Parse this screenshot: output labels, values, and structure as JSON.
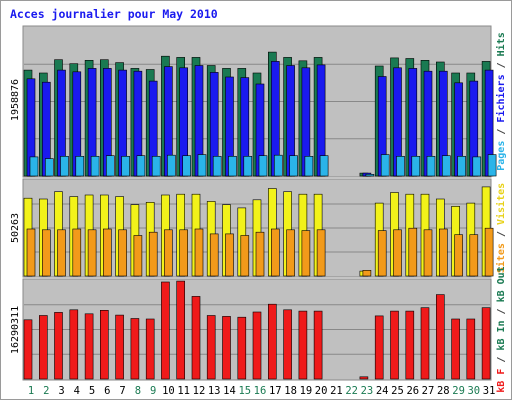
{
  "chart_data": {
    "type": "bar",
    "title": "Acces journalier pour May 2010",
    "days": [
      "1",
      "2",
      "3",
      "4",
      "5",
      "6",
      "7",
      "8",
      "9",
      "10",
      "11",
      "12",
      "13",
      "14",
      "15",
      "16",
      "17",
      "18",
      "19",
      "20",
      "21",
      "22",
      "23",
      "24",
      "25",
      "26",
      "27",
      "28",
      "29",
      "30",
      "31"
    ],
    "weekend_days": [
      "1",
      "2",
      "8",
      "9",
      "15",
      "16",
      "22",
      "23",
      "29",
      "30"
    ],
    "panels": [
      {
        "name": "Pages / Fichiers / Hits",
        "ylabel_max": "1958876",
        "ymax": 2540000,
        "series": [
          {
            "name": "Hits",
            "color": "#1a7a52",
            "values": [
              1830000,
              1780000,
              2010000,
              1940000,
              2000000,
              2010000,
              1960000,
              1860000,
              1840000,
              2070000,
              2050000,
              2050000,
              1910000,
              1860000,
              1860000,
              1780000,
              2140000,
              2050000,
              1990000,
              2050000,
              0,
              0,
              50000,
              1900000,
              2040000,
              2030000,
              2000000,
              1970000,
              1780000,
              1780000,
              1980000
            ]
          },
          {
            "name": "Fichiers",
            "color": "#1a1aef",
            "values": [
              1680000,
              1620000,
              1830000,
              1800000,
              1860000,
              1860000,
              1830000,
              1810000,
              1640000,
              1890000,
              1870000,
              1910000,
              1790000,
              1710000,
              1700000,
              1590000,
              1980000,
              1910000,
              1870000,
              1920000,
              0,
              0,
              50000,
              1720000,
              1870000,
              1860000,
              1810000,
              1810000,
              1610000,
              1640000,
              1830000
            ]
          },
          {
            "name": "Pages",
            "color": "#2ab4e9",
            "values": [
              330000,
              300000,
              340000,
              340000,
              340000,
              350000,
              340000,
              350000,
              340000,
              360000,
              350000,
              370000,
              340000,
              340000,
              340000,
              350000,
              360000,
              350000,
              340000,
              350000,
              0,
              0,
              30000,
              370000,
              340000,
              340000,
              340000,
              350000,
              340000,
              330000,
              370000
            ]
          }
        ]
      },
      {
        "name": "Visites / Sites",
        "ylabel_max": "50263",
        "ymax": 58000,
        "series": [
          {
            "name": "Visites",
            "color": "#f2f21a",
            "values": [
              48000,
              47500,
              52000,
              49000,
              50000,
              50000,
              49000,
              44000,
              45500,
              50000,
              50500,
              50500,
              46000,
              44000,
              42000,
              47000,
              54000,
              52000,
              50500,
              50500,
              0,
              0,
              3000,
              45000,
              51500,
              50500,
              50500,
              47500,
              43000,
              45000,
              55000
            ]
          },
          {
            "name": "Sites",
            "color": "#f29a1a",
            "values": [
              29000,
              28500,
              28500,
              29000,
              28500,
              29000,
              28500,
              25000,
              27000,
              28500,
              28500,
              29000,
              26000,
              26000,
              25000,
              27000,
              29000,
              28500,
              28000,
              28500,
              0,
              0,
              3500,
              28000,
              28500,
              29500,
              28500,
              29000,
              25500,
              25500,
              29500
            ]
          }
        ]
      },
      {
        "name": "kB F / kB In / kB Out",
        "ylabel_max": "16290311",
        "ymax": 22300000,
        "series": [
          {
            "name": "kB F",
            "color": "#ef1a1a",
            "values": [
              13600000,
              14600000,
              15300000,
              15900000,
              15000000,
              15800000,
              14700000,
              13900000,
              13800000,
              22300000,
              22500000,
              19000000,
              14600000,
              14400000,
              14200000,
              15400000,
              17200000,
              15900000,
              15600000,
              15600000,
              0,
              0,
              500000,
              14500000,
              15600000,
              15600000,
              16400000,
              19400000,
              13800000,
              13800000,
              16400000
            ]
          }
        ]
      }
    ],
    "right_legends": [
      [
        {
          "text": "Pages",
          "color": "#2ab4e9"
        },
        {
          "text": " / ",
          "color": "#444444"
        },
        {
          "text": "Fichiers",
          "color": "#1a1aef"
        },
        {
          "text": " / ",
          "color": "#444444"
        },
        {
          "text": "Hits",
          "color": "#1a7a52"
        }
      ],
      [
        {
          "text": "Sites",
          "color": "#f29a1a"
        },
        {
          "text": " / ",
          "color": "#444444"
        },
        {
          "text": "Visites",
          "color": "#e8d21a"
        }
      ],
      [
        {
          "text": "kB F",
          "color": "#ef1a1a"
        },
        {
          "text": " / ",
          "color": "#444444"
        },
        {
          "text": "kB In",
          "color": "#1a7a52"
        },
        {
          "text": " / ",
          "color": "#444444"
        },
        {
          "text": "kB Out",
          "color": "#1a7a52"
        }
      ]
    ],
    "colors": {
      "title": "#1a1aef",
      "panel_bg": "#c0c0c0",
      "outer_bg": "#ffffff",
      "grid": "#888888",
      "weekday": "#000000",
      "weekend": "#1a7a52"
    }
  }
}
